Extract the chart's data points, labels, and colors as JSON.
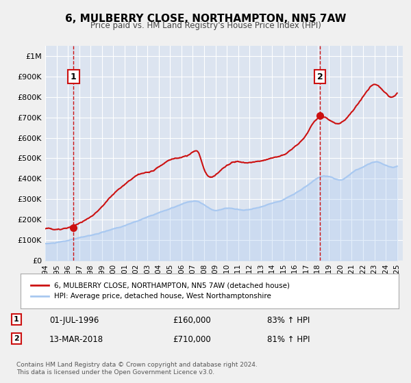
{
  "title": "6, MULBERRY CLOSE, NORTHAMPTON, NN5 7AW",
  "subtitle": "Price paid vs. HM Land Registry's House Price Index (HPI)",
  "xlim": [
    1994.0,
    2025.5
  ],
  "ylim": [
    0,
    1050000
  ],
  "yticks": [
    0,
    100000,
    200000,
    300000,
    400000,
    500000,
    600000,
    700000,
    800000,
    900000,
    1000000
  ],
  "ytick_labels": [
    "£0",
    "£100K",
    "£200K",
    "£300K",
    "£400K",
    "£500K",
    "£600K",
    "£700K",
    "£800K",
    "£900K",
    "£1M"
  ],
  "xticks": [
    1994,
    1995,
    1996,
    1997,
    1998,
    1999,
    2000,
    2001,
    2002,
    2003,
    2004,
    2005,
    2006,
    2007,
    2008,
    2009,
    2010,
    2011,
    2012,
    2013,
    2014,
    2015,
    2016,
    2017,
    2018,
    2019,
    2020,
    2021,
    2022,
    2023,
    2024,
    2025
  ],
  "point1_x": 1996.5,
  "point1_y": 160000,
  "point1_label": "1",
  "point2_x": 2018.2,
  "point2_y": 710000,
  "point2_label": "2",
  "vline1_x": 1996.5,
  "vline2_x": 2018.2,
  "hpi_color": "#a8c8f0",
  "price_color": "#cc1111",
  "grid_color": "#d0d8e8",
  "bg_color": "#e8eef8",
  "plot_bg": "#dce4f0",
  "legend_label1": "6, MULBERRY CLOSE, NORTHAMPTON, NN5 7AW (detached house)",
  "legend_label2": "HPI: Average price, detached house, West Northamptonshire",
  "annotation1_date": "01-JUL-1996",
  "annotation1_price": "£160,000",
  "annotation1_hpi": "83% ↑ HPI",
  "annotation2_date": "13-MAR-2018",
  "annotation2_price": "£710,000",
  "annotation2_hpi": "81% ↑ HPI",
  "footer": "Contains HM Land Registry data © Crown copyright and database right 2024.\nThis data is licensed under the Open Government Licence v3.0."
}
